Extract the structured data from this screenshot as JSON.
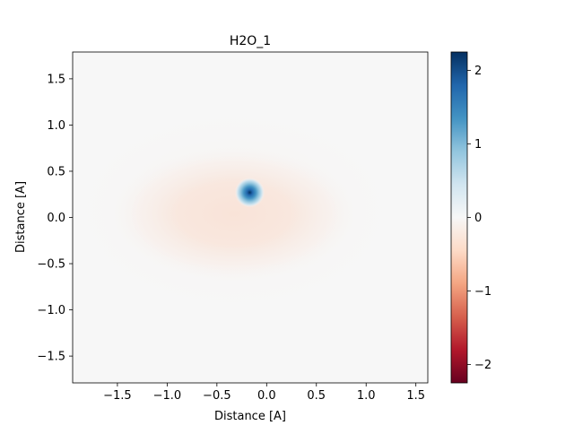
{
  "chart_data": {
    "type": "heatmap",
    "title": "H2O_1",
    "xlabel": "Distance [A]",
    "ylabel": "Distance [A]",
    "xlim": [
      -1.95,
      1.62
    ],
    "ylim": [
      -1.79,
      1.79
    ],
    "xticks": [
      -1.5,
      -1.0,
      -0.5,
      0.0,
      0.5,
      1.0,
      1.5
    ],
    "xtick_labels": [
      "−1.5",
      "−1.0",
      "−0.5",
      "0.0",
      "0.5",
      "1.0",
      "1.5"
    ],
    "yticks": [
      -1.5,
      -1.0,
      -0.5,
      0.0,
      0.5,
      1.0,
      1.5
    ],
    "ytick_labels": [
      "−1.5",
      "−1.0",
      "−0.5",
      "0.0",
      "0.5",
      "1.0",
      "1.5"
    ],
    "colormap": "RdBu",
    "colorbar": {
      "range": [
        -2.25,
        2.25
      ],
      "ticks": [
        -2,
        -1,
        0,
        1,
        2
      ],
      "tick_labels": [
        "−2",
        "−1",
        "0",
        "1",
        "2"
      ]
    },
    "features": [
      {
        "kind": "positive_peak",
        "x": -0.17,
        "y": 0.27,
        "peak_value": 2.25,
        "radius": 0.15
      },
      {
        "kind": "negative_lobe",
        "x": -0.15,
        "y": 0.0,
        "value": -0.25,
        "extent_x": [
          -1.6,
          0.95
        ],
        "extent_y": [
          -0.75,
          0.75
        ]
      }
    ],
    "grid": false
  }
}
